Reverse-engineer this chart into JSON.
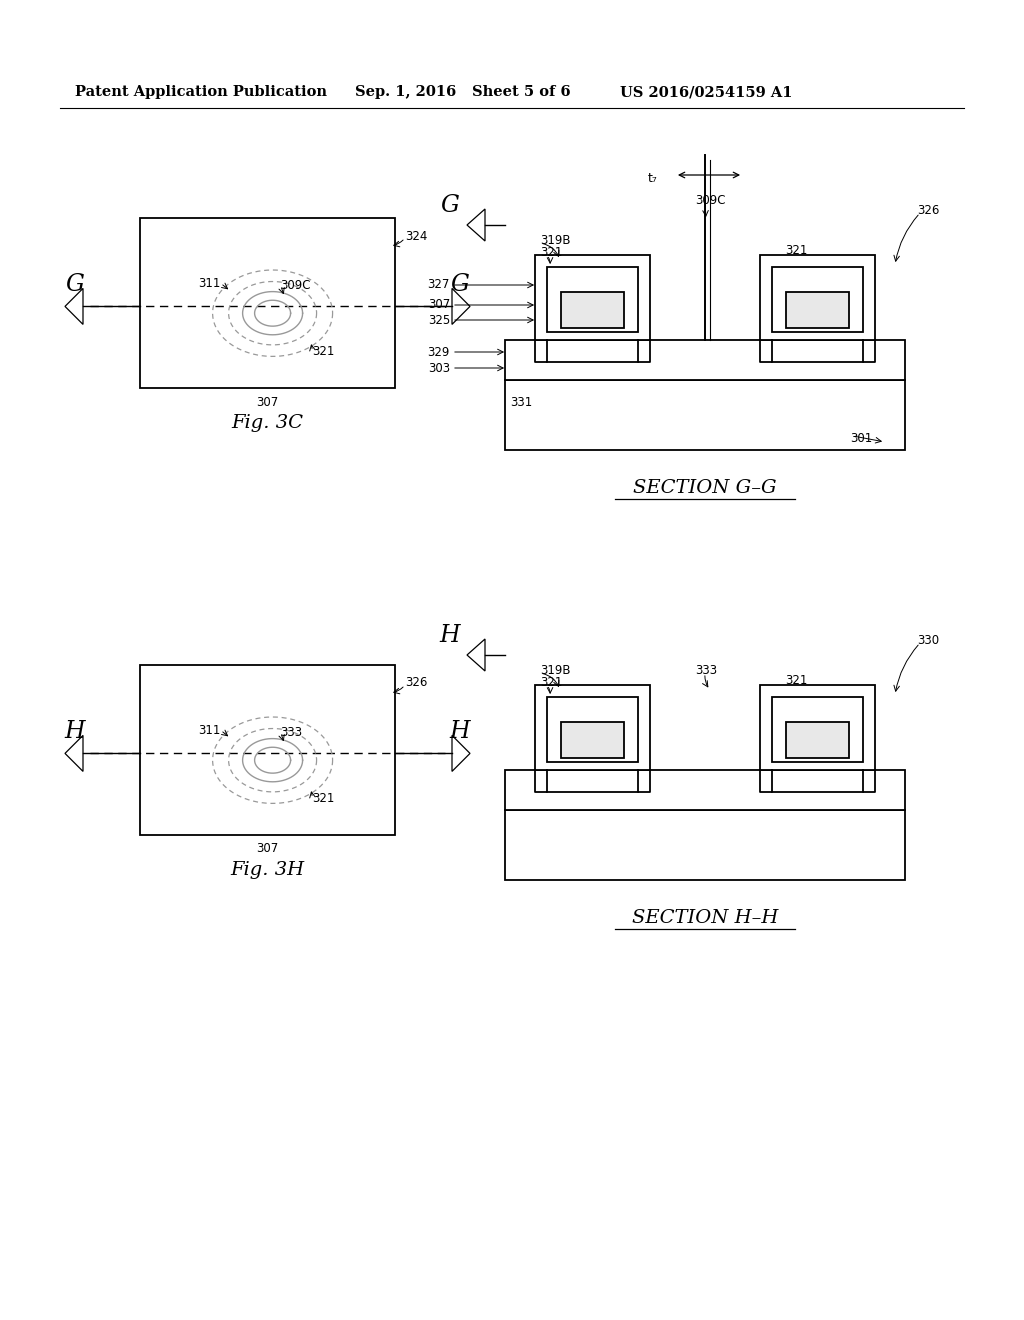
{
  "background_color": "#ffffff",
  "header_text1": "Patent Application Publication",
  "header_text2": "Sep. 1, 2016",
  "header_text3": "Sheet 5 of 6",
  "header_text4": "US 2016/0254159 A1",
  "fig3c_title": "Fig. 3C",
  "section_gg_title": "SECTION G–G",
  "fig3h_title": "Fig. 3H",
  "section_hh_title": "SECTION H–H"
}
